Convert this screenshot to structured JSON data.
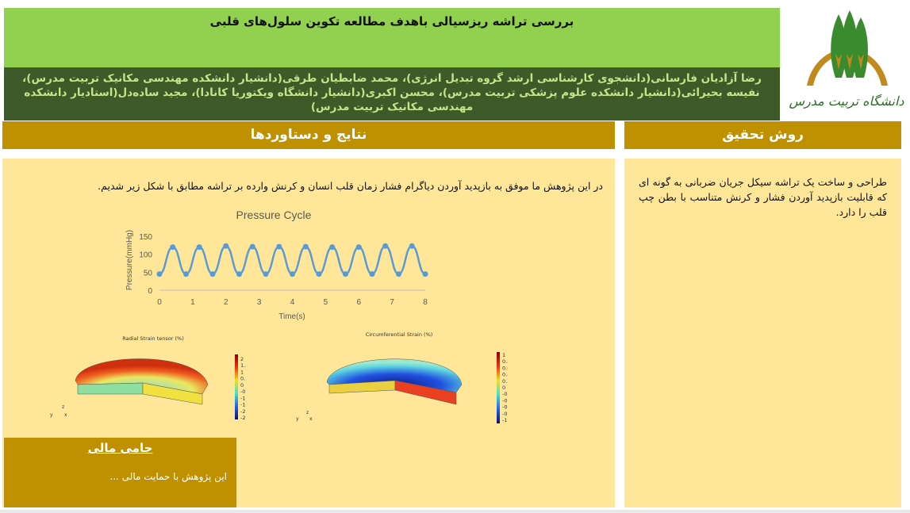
{
  "header": {
    "title": "بررسی تراشه ریزسیالی باهدف مطالعه تکوین سلول‌های قلبی",
    "authors": "رضا آزادیان فارسانی(دانشجوی کارشناسی ارشد گروه تبدیل انرژی)، محمد ضابطیان طرقی(دانشیار دانشکده مهندسی مکانیک تربیت مدرس)، نفیسه بحیرائی(دانشیار دانشکده علوم پزشکی تربیت مدرس)، محسن اکبری(دانشیار دانشگاه ویکتوریا کانادا)، مجید ساده‌دل(استادیار دانشکده مهندسی مکانیک تربیت مدرس)",
    "logo_text": "دانشگاه تربیت مدرس"
  },
  "sections": {
    "results_title": "نتایج و دستاوردها",
    "method_title": "روش تحقیق",
    "results_intro": "در این پژوهش ما موفق به بازپدید آوردن دیاگرام فشار زمان قلب انسان و کرنش وارده بر تراشه مطابق با شکل زیر شدیم.",
    "method_text": "طراحی و ساخت یک تراشه سیکل جریان ضربانی به گونه ای که قابلیت بازپدید آوردن فشار و کرنش متناسب با بطن چپ قلب را دارد.",
    "funding_title": "حامی مالی",
    "funding_text": "این پژوهش با حمایت مالی ..."
  },
  "colors": {
    "title_bg": "#92d050",
    "authors_bg": "#3d5a28",
    "header_bg": "#bf9000",
    "panel_bg": "#ffe699",
    "series": "#5b9bd5"
  },
  "chart_data": {
    "type": "line",
    "title": "Pressure Cycle",
    "xlabel": "Time(s)",
    "ylabel": "Pressure(mmHg)",
    "xlim": [
      0,
      8
    ],
    "ylim": [
      0,
      150
    ],
    "xticks": [
      "0",
      "1",
      "2",
      "3",
      "4",
      "5",
      "6",
      "7",
      "8"
    ],
    "yticks": [
      "0",
      "50",
      "100",
      "150"
    ],
    "grid": false,
    "smooth": true,
    "x": [
      0,
      0.4,
      0.8,
      1.2,
      1.6,
      2.0,
      2.4,
      2.8,
      3.2,
      3.6,
      4.0,
      4.4,
      4.8,
      5.2,
      5.6,
      6.0,
      6.4,
      6.8,
      7.2,
      7.6,
      8.0
    ],
    "y": [
      45,
      120,
      45,
      120,
      45,
      123,
      45,
      121,
      45,
      121,
      45,
      121,
      45,
      120,
      45,
      120,
      45,
      123,
      45,
      123,
      45
    ]
  },
  "figures": [
    {
      "title": "Radial Strain tensor (%)",
      "colorbar": [
        "2",
        "1.5",
        "1",
        "0.5",
        "0",
        "-0.5",
        "-1",
        "-1.5",
        "-2",
        "-2.5"
      ],
      "axes": [
        "z",
        "y",
        "x"
      ]
    },
    {
      "title": "Circumferential Strain (%)",
      "colorbar": [
        "1",
        "0.8",
        "0.6",
        "0.4",
        "0.2",
        "0",
        "-0.2",
        "-0.4",
        "-0.6",
        "-0.8",
        "-1"
      ],
      "axes": [
        "z",
        "y",
        "x"
      ]
    }
  ]
}
